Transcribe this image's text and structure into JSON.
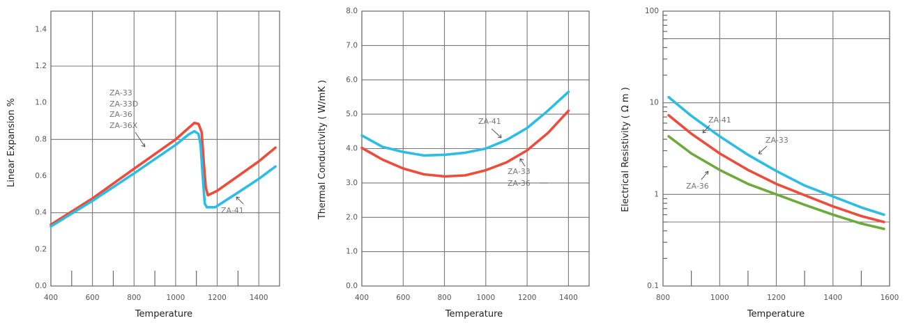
{
  "chart_data": [
    {
      "type": "line",
      "id": "expansion",
      "title": "",
      "xlabel": "Temperature",
      "ylabel": "Linear Expansion %",
      "xlim": [
        400,
        1500
      ],
      "ylim": [
        0,
        1.5
      ],
      "yscale": "linear",
      "xticks": [
        400,
        600,
        800,
        1000,
        1200,
        1400
      ],
      "xtick_labels": [
        "400",
        "600",
        "800",
        "1000",
        "1200",
        "1400"
      ],
      "yticks": [
        0,
        0.2,
        0.4,
        0.6,
        0.8,
        1.0,
        1.2,
        1.4
      ],
      "ytick_labels": [
        "0.0",
        "0.2",
        "0.4",
        "0.6",
        "0.8",
        "1.0",
        "1.2",
        "1.4"
      ],
      "xgrid": [
        400,
        600,
        800,
        1000,
        1200,
        1400
      ],
      "ygrid": [
        0.4,
        0.8,
        1.2
      ],
      "xminor": [
        500,
        700,
        900,
        1100,
        1300
      ],
      "series": [
        {
          "name": "ZA-33 / ZA-33D / ZA-36 / ZA-36X",
          "color": "#EE4B3A",
          "points": [
            [
              400,
              0.335
            ],
            [
              600,
              0.478
            ],
            [
              800,
              0.64
            ],
            [
              1000,
              0.8
            ],
            [
              1060,
              0.86
            ],
            [
              1090,
              0.89
            ],
            [
              1110,
              0.885
            ],
            [
              1125,
              0.84
            ],
            [
              1135,
              0.68
            ],
            [
              1145,
              0.54
            ],
            [
              1155,
              0.495
            ],
            [
              1200,
              0.52
            ],
            [
              1300,
              0.6
            ],
            [
              1400,
              0.68
            ],
            [
              1480,
              0.755
            ]
          ]
        },
        {
          "name": "ZA-41",
          "color": "#2CBDE6",
          "points": [
            [
              400,
              0.325
            ],
            [
              600,
              0.465
            ],
            [
              800,
              0.615
            ],
            [
              1000,
              0.77
            ],
            [
              1060,
              0.825
            ],
            [
              1090,
              0.845
            ],
            [
              1110,
              0.83
            ],
            [
              1120,
              0.77
            ],
            [
              1130,
              0.6
            ],
            [
              1140,
              0.45
            ],
            [
              1150,
              0.43
            ],
            [
              1190,
              0.43
            ],
            [
              1300,
              0.51
            ],
            [
              1400,
              0.585
            ],
            [
              1480,
              0.652
            ]
          ]
        }
      ],
      "annotations": [
        {
          "lines": [
            "ZA-33",
            "ZA-33D",
            "ZA-36",
            "ZA-36X"
          ],
          "text_at": [
            1300,
            1.0
          ],
          "arrow_to": [
            1830,
            0.73
          ],
          "ref": [
            690,
            1.02
          ]
        },
        {
          "lines": [
            "ZA-41"
          ],
          "at": [
            1250,
            0.4
          ],
          "arrow_from": [
            1240,
            0.45
          ],
          "arrow_to": [
            1175,
            0.45
          ]
        }
      ]
    },
    {
      "type": "line",
      "id": "conductivity",
      "title": "",
      "xlabel": "Temperature",
      "ylabel": "Thermal Conductivity ( W/mK )",
      "xlim": [
        400,
        1500
      ],
      "ylim": [
        0,
        8
      ],
      "yscale": "linear",
      "xticks": [
        400,
        600,
        800,
        1000,
        1200,
        1400
      ],
      "xtick_labels": [
        "400",
        "600",
        "800",
        "1000",
        "1200",
        "1400"
      ],
      "yticks": [
        0,
        1,
        2,
        3,
        4,
        5,
        6,
        7,
        8
      ],
      "ytick_labels": [
        "0.0",
        "1.0",
        "2.0",
        "3.0",
        "4.0",
        "5.0",
        "6.0",
        "7.0",
        "8.0"
      ],
      "xgrid": [
        400,
        600,
        800,
        1000,
        1200,
        1400
      ],
      "ygrid": [
        1,
        2,
        3,
        4,
        5,
        6,
        7
      ],
      "xminor": [],
      "series": [
        {
          "name": "ZA-41",
          "color": "#2CBDE6",
          "points": [
            [
              400,
              4.38
            ],
            [
              500,
              4.05
            ],
            [
              600,
              3.9
            ],
            [
              700,
              3.8
            ],
            [
              800,
              3.82
            ],
            [
              900,
              3.88
            ],
            [
              1000,
              4.0
            ],
            [
              1100,
              4.25
            ],
            [
              1200,
              4.6
            ],
            [
              1300,
              5.1
            ],
            [
              1400,
              5.65
            ]
          ]
        },
        {
          "name": "ZA-33 / ZA-36",
          "color": "#EE4B3A",
          "points": [
            [
              400,
              4.02
            ],
            [
              500,
              3.68
            ],
            [
              600,
              3.42
            ],
            [
              700,
              3.25
            ],
            [
              800,
              3.19
            ],
            [
              900,
              3.22
            ],
            [
              1000,
              3.37
            ],
            [
              1100,
              3.6
            ],
            [
              1200,
              3.95
            ],
            [
              1300,
              4.45
            ],
            [
              1400,
              5.1
            ]
          ]
        }
      ],
      "annotations": [
        {
          "lines": [
            "ZA-41"
          ],
          "at": [
            1000,
            4.75
          ]
        },
        {
          "lines": [
            "ZA-33",
            "ZA-36"
          ],
          "at": [
            1150,
            3.2
          ]
        }
      ]
    },
    {
      "type": "line",
      "id": "resistivity",
      "title": "",
      "xlabel": "Temperature",
      "ylabel": "Electrical Resistivity ( Ω m )",
      "xlim": [
        800,
        1600
      ],
      "ylim": [
        0.1,
        100
      ],
      "yscale": "log",
      "xticks": [
        800,
        1000,
        1200,
        1400,
        1600
      ],
      "xtick_labels": [
        "800",
        "1000",
        "1200",
        "1400",
        "1600"
      ],
      "yticks": [
        0.1,
        1,
        10,
        100
      ],
      "ytick_labels": [
        "0.1",
        "1",
        "10",
        "100"
      ],
      "xgrid": [
        800,
        1000,
        1200,
        1400,
        1600
      ],
      "ygrid": [
        0.5,
        1,
        5,
        10,
        50
      ],
      "xminor": [
        900,
        1100,
        1300,
        1500
      ],
      "series": [
        {
          "name": "ZA-41",
          "color": "#2CBDE6",
          "points": [
            [
              820,
              11.5
            ],
            [
              900,
              7.2
            ],
            [
              1000,
              4.3
            ],
            [
              1100,
              2.7
            ],
            [
              1200,
              1.8
            ],
            [
              1300,
              1.25
            ],
            [
              1400,
              0.95
            ],
            [
              1500,
              0.72
            ],
            [
              1580,
              0.6
            ]
          ]
        },
        {
          "name": "ZA-33",
          "color": "#EE4B3A",
          "points": [
            [
              820,
              7.3
            ],
            [
              900,
              4.6
            ],
            [
              1000,
              2.8
            ],
            [
              1100,
              1.85
            ],
            [
              1200,
              1.3
            ],
            [
              1300,
              0.98
            ],
            [
              1400,
              0.74
            ],
            [
              1500,
              0.58
            ],
            [
              1580,
              0.5
            ]
          ]
        },
        {
          "name": "ZA-36",
          "color": "#6DAA3C",
          "points": [
            [
              820,
              4.3
            ],
            [
              900,
              2.8
            ],
            [
              1000,
              1.85
            ],
            [
              1100,
              1.3
            ],
            [
              1200,
              1.0
            ],
            [
              1300,
              0.77
            ],
            [
              1400,
              0.6
            ],
            [
              1500,
              0.48
            ],
            [
              1580,
              0.42
            ]
          ]
        }
      ],
      "annotations": [
        {
          "lines": [
            "ZA-41"
          ],
          "at": [
            1030,
            7.5
          ]
        },
        {
          "lines": [
            "ZA-33"
          ],
          "at": [
            1230,
            4.1
          ]
        },
        {
          "lines": [
            "ZA-36"
          ],
          "at": [
            870,
            0.95
          ]
        }
      ]
    }
  ]
}
